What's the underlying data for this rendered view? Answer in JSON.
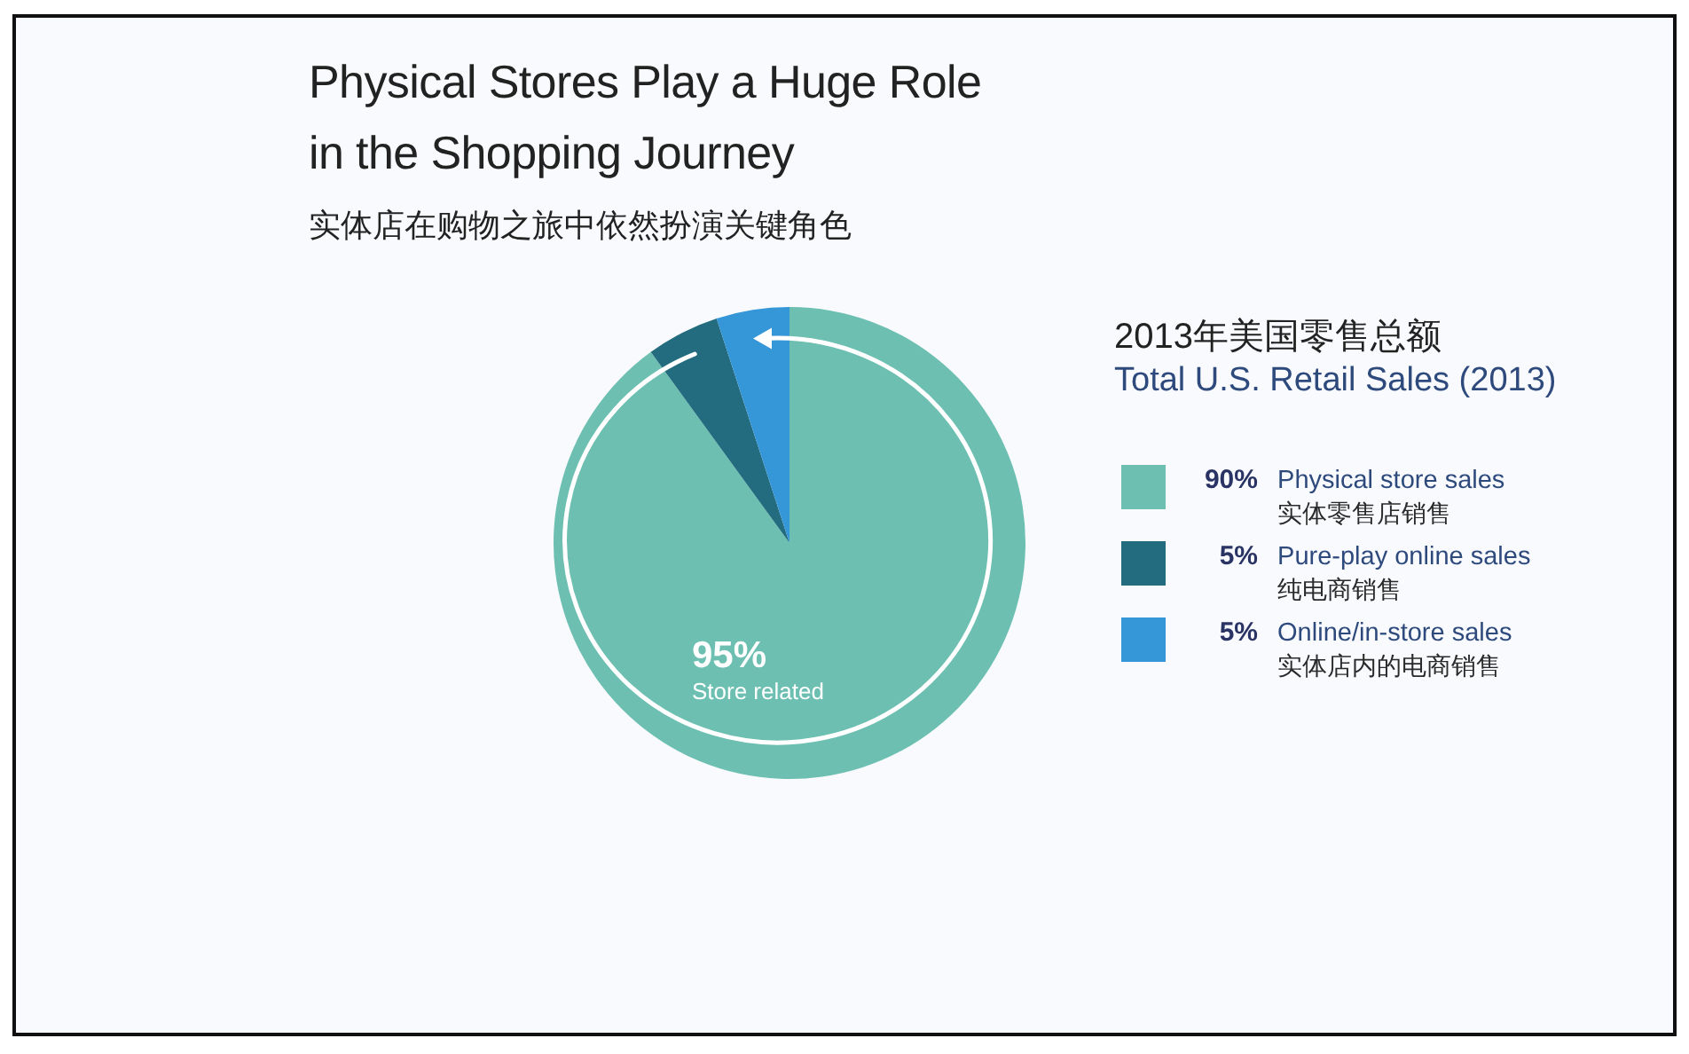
{
  "chart_data": {
    "type": "pie",
    "title": "Physical Stores Play a Huge Role in the Shopping Journey",
    "subtitle": "实体店在购物之旅中依然扮演关键角色",
    "legend_title": "2013年美国零售总额\nTotal U.S. Retail Sales (2013)",
    "categories": [
      "90% Physical store sales\n实体零售店销售",
      "5% Pure-play online sales\n纯电商销售",
      "5% Online/in-store sales\n实体店内的电商销售"
    ],
    "values": [
      90,
      5,
      5
    ],
    "colors": [
      "#6cbfb1",
      "#236b7e",
      "#3596d8"
    ],
    "legend": "right",
    "annotations": [
      "95%",
      "Store related"
    ]
  }
}
